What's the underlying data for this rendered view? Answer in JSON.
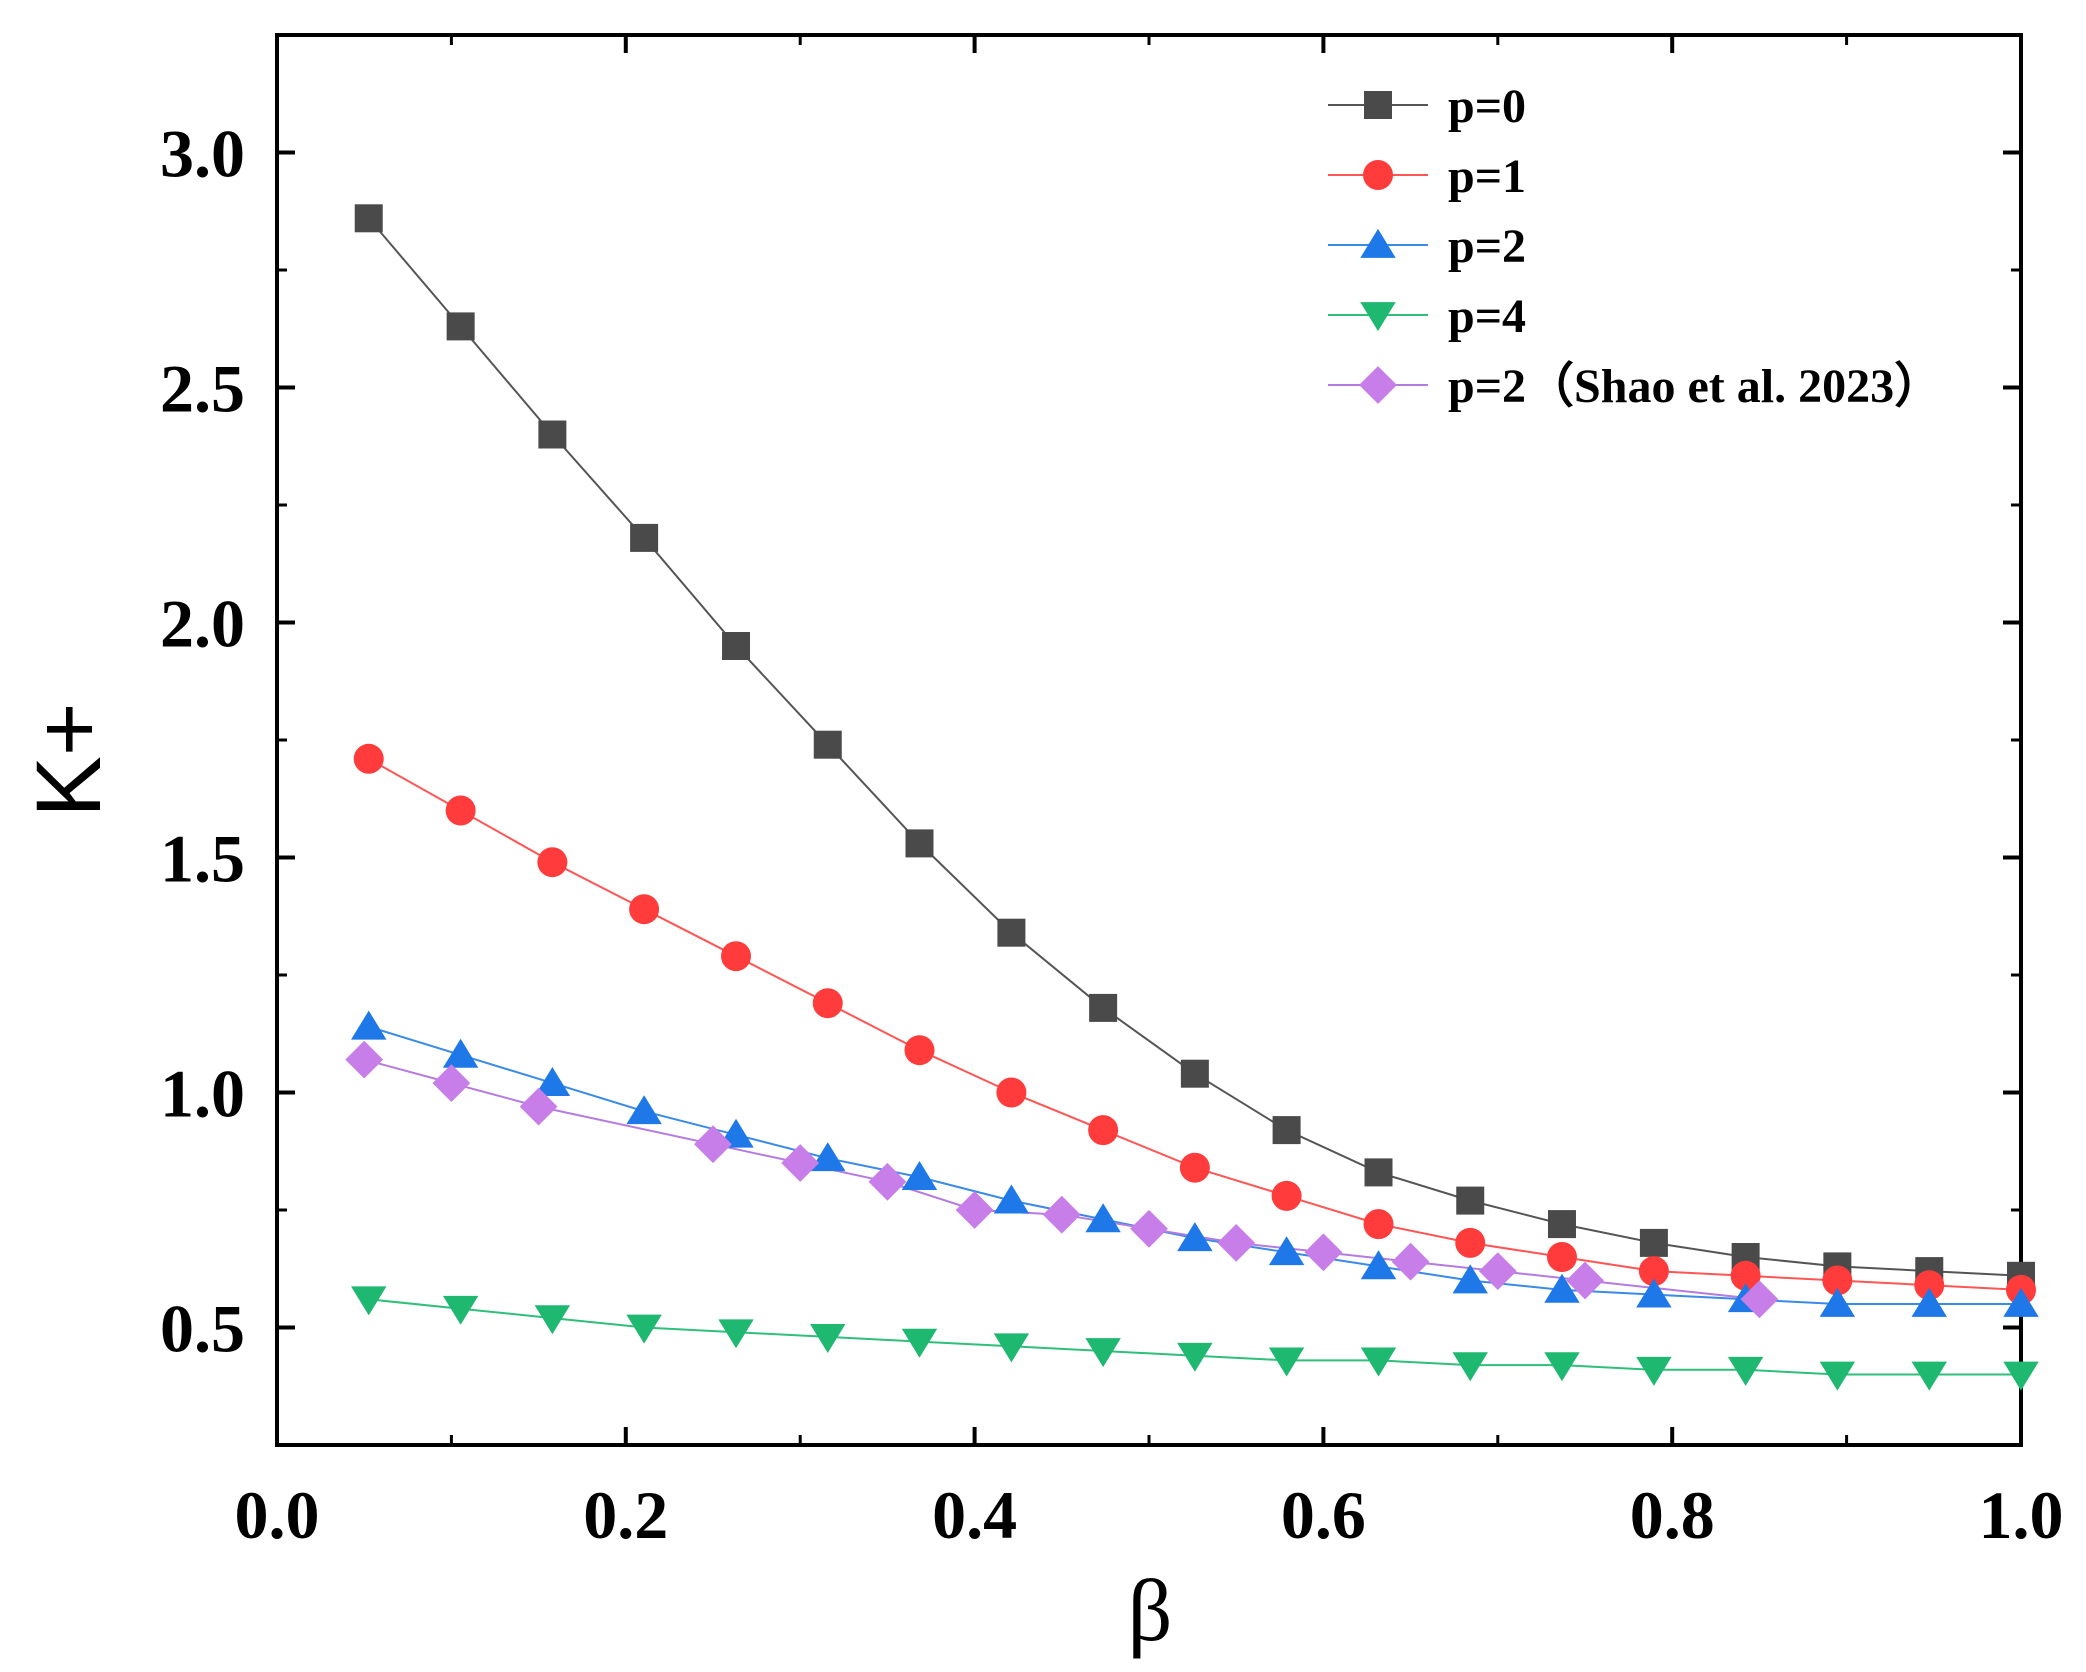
{
  "chart_data": {
    "type": "line",
    "title": "",
    "xlabel": "β",
    "ylabel": "K+",
    "xlim": [
      0.0,
      1.0
    ],
    "ylim": [
      0.25,
      3.25
    ],
    "xticks": [
      "0.0",
      "0.2",
      "0.4",
      "0.6",
      "0.8",
      "1.0"
    ],
    "yticks": [
      "0.5",
      "1.0",
      "1.5",
      "2.0",
      "2.5",
      "3.0"
    ],
    "legend_position": "top-right",
    "series": [
      {
        "name": "p=0",
        "color": "#4a4a4a",
        "line_color": "#555555",
        "marker": "square",
        "x": [
          0.0526,
          0.1053,
          0.1579,
          0.2105,
          0.2632,
          0.3158,
          0.3684,
          0.4211,
          0.4737,
          0.5263,
          0.5789,
          0.6316,
          0.6842,
          0.7368,
          0.7895,
          0.8421,
          0.8947,
          0.9474,
          1.0
        ],
        "y": [
          2.86,
          2.63,
          2.4,
          2.18,
          1.95,
          1.74,
          1.53,
          1.34,
          1.18,
          1.04,
          0.92,
          0.83,
          0.77,
          0.72,
          0.68,
          0.65,
          0.63,
          0.62,
          0.61
        ]
      },
      {
        "name": "p=1",
        "color": "#ff3b3b",
        "line_color": "#ff5555",
        "marker": "circle",
        "x": [
          0.0526,
          0.1053,
          0.1579,
          0.2105,
          0.2632,
          0.3158,
          0.3684,
          0.4211,
          0.4737,
          0.5263,
          0.5789,
          0.6316,
          0.6842,
          0.7368,
          0.7895,
          0.8421,
          0.8947,
          0.9474,
          1.0
        ],
        "y": [
          1.71,
          1.6,
          1.49,
          1.39,
          1.29,
          1.19,
          1.09,
          1.0,
          0.92,
          0.84,
          0.78,
          0.72,
          0.68,
          0.65,
          0.62,
          0.61,
          0.6,
          0.59,
          0.58
        ]
      },
      {
        "name": "p=2",
        "color": "#1e78e8",
        "line_color": "#3a8ae8",
        "marker": "triangle-up",
        "x": [
          0.0526,
          0.1053,
          0.1579,
          0.2105,
          0.2632,
          0.3158,
          0.3684,
          0.4211,
          0.4737,
          0.5263,
          0.5789,
          0.6316,
          0.6842,
          0.7368,
          0.7895,
          0.8421,
          0.8947,
          0.9474,
          1.0
        ],
        "y": [
          1.14,
          1.08,
          1.02,
          0.96,
          0.91,
          0.86,
          0.82,
          0.77,
          0.73,
          0.69,
          0.66,
          0.63,
          0.6,
          0.58,
          0.57,
          0.56,
          0.55,
          0.55,
          0.55
        ]
      },
      {
        "name": "p=4",
        "color": "#1fb870",
        "line_color": "#2fbf7a",
        "marker": "triangle-down",
        "x": [
          0.0526,
          0.1053,
          0.1579,
          0.2105,
          0.2632,
          0.3158,
          0.3684,
          0.4211,
          0.4737,
          0.5263,
          0.5789,
          0.6316,
          0.6842,
          0.7368,
          0.7895,
          0.8421,
          0.8947,
          0.9474,
          1.0
        ],
        "y": [
          0.56,
          0.54,
          0.52,
          0.5,
          0.49,
          0.48,
          0.47,
          0.46,
          0.45,
          0.44,
          0.43,
          0.43,
          0.42,
          0.42,
          0.41,
          0.41,
          0.4,
          0.4,
          0.4
        ]
      },
      {
        "name": "p=2（Shao et al. 2023）",
        "color": "#c77ee8",
        "line_color": "#b57be0",
        "marker": "diamond",
        "x": [
          0.05,
          0.1,
          0.15,
          0.25,
          0.3,
          0.35,
          0.4,
          0.45,
          0.5,
          0.55,
          0.6,
          0.65,
          0.7,
          0.75,
          0.85
        ],
        "y": [
          1.07,
          1.02,
          0.97,
          0.89,
          0.85,
          0.81,
          0.75,
          0.74,
          0.71,
          0.68,
          0.66,
          0.64,
          0.62,
          0.6,
          0.56
        ]
      }
    ]
  }
}
